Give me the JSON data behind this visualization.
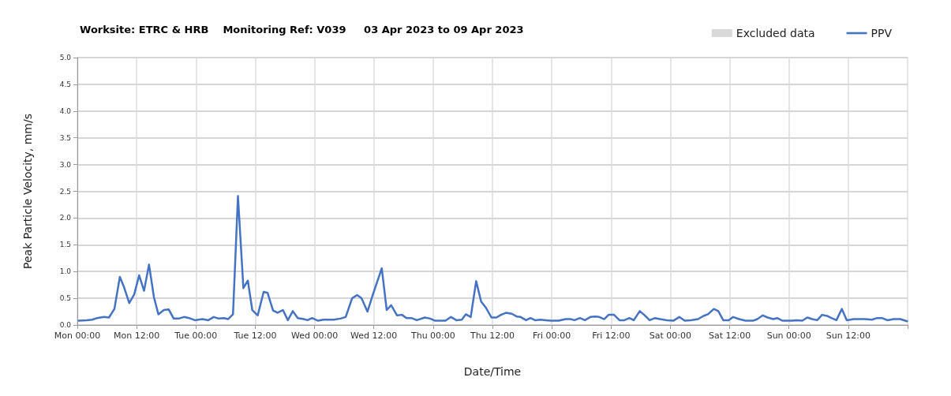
{
  "chart_data": {
    "type": "line",
    "title": "Worksite: ETRC & HRB    Monitoring Ref: V039     03 Apr 2023 to 09 Apr 2023",
    "xlabel": "Date/Time",
    "ylabel": "Peak Particle Velocity, mm/s",
    "xlim": [
      "2023-04-03T00:00",
      "2023-04-10T00:00"
    ],
    "xticks": [
      {
        "value": "2023-04-03T00:00",
        "label": "Mon 00:00"
      },
      {
        "value": "2023-04-03T12:00",
        "label": "Mon 12:00"
      },
      {
        "value": "2023-04-04T00:00",
        "label": "Tue 00:00"
      },
      {
        "value": "2023-04-04T12:00",
        "label": "Tue 12:00"
      },
      {
        "value": "2023-04-05T00:00",
        "label": "Wed 00:00"
      },
      {
        "value": "2023-04-05T12:00",
        "label": "Wed 12:00"
      },
      {
        "value": "2023-04-06T00:00",
        "label": "Thu 00:00"
      },
      {
        "value": "2023-04-06T12:00",
        "label": "Thu 12:00"
      },
      {
        "value": "2023-04-07T00:00",
        "label": "Fri 00:00"
      },
      {
        "value": "2023-04-07T12:00",
        "label": "Fri 12:00"
      },
      {
        "value": "2023-04-08T00:00",
        "label": "Sat 00:00"
      },
      {
        "value": "2023-04-08T12:00",
        "label": "Sat 12:00"
      },
      {
        "value": "2023-04-09T00:00",
        "label": "Sun 00:00"
      },
      {
        "value": "2023-04-09T12:00",
        "label": "Sun 12:00"
      },
      {
        "value": "2023-04-10T00:00",
        "label": null
      }
    ],
    "ylim": [
      0,
      5
    ],
    "yticks": [
      {
        "value": 0,
        "label": "0.0"
      },
      {
        "value": 0.5,
        "label": "0.5"
      },
      {
        "value": 1,
        "label": "1.0"
      },
      {
        "value": 1.5,
        "label": "1.5"
      },
      {
        "value": 2,
        "label": "2.0"
      },
      {
        "value": 2.5,
        "label": "2.5"
      },
      {
        "value": 3,
        "label": "3.0"
      },
      {
        "value": 3.5,
        "label": "3.5"
      },
      {
        "value": 4,
        "label": "4.0"
      },
      {
        "value": 4.5,
        "label": "4.5"
      },
      {
        "value": 5,
        "label": "5.0"
      }
    ],
    "grid": true,
    "legend": "top right",
    "marker": "none",
    "line_style": "solid",
    "series": [
      {
        "name": "Excluded data",
        "type": "bar",
        "color": "#d9d9d9"
      },
      {
        "name": "PPV",
        "color": "#4472c4",
        "x": [
          "2023-04-03T00:18",
          "2023-04-03T01:54",
          "2023-04-03T03:00",
          "2023-04-03T04:00",
          "2023-04-03T05:24",
          "2023-04-03T06:24",
          "2023-04-03T07:30",
          "2023-04-03T08:36",
          "2023-04-03T09:24",
          "2023-04-03T10:30",
          "2023-04-03T11:30",
          "2023-04-03T12:30",
          "2023-04-03T13:30",
          "2023-04-03T14:30",
          "2023-04-03T15:30",
          "2023-04-03T16:24",
          "2023-04-03T17:30",
          "2023-04-03T18:30",
          "2023-04-03T19:30",
          "2023-04-03T20:30",
          "2023-04-03T21:36",
          "2023-04-03T22:36",
          "2023-04-03T23:48",
          "2023-04-04T01:18",
          "2023-04-04T02:30",
          "2023-04-04T03:36",
          "2023-04-04T04:36",
          "2023-04-04T05:42",
          "2023-04-04T06:30",
          "2023-04-04T07:30",
          "2023-04-04T08:30",
          "2023-04-04T09:36",
          "2023-04-04T10:30",
          "2023-04-04T11:24",
          "2023-04-04T12:30",
          "2023-04-04T13:42",
          "2023-04-04T14:30",
          "2023-04-04T15:36",
          "2023-04-04T16:30",
          "2023-04-04T17:36",
          "2023-04-04T18:36",
          "2023-04-04T19:36",
          "2023-04-04T20:36",
          "2023-04-04T21:48",
          "2023-04-04T22:36",
          "2023-04-04T23:30",
          "2023-04-05T00:42",
          "2023-04-05T01:48",
          "2023-04-05T03:54",
          "2023-04-05T05:12",
          "2023-04-05T06:18",
          "2023-04-05T07:36",
          "2023-04-05T08:36",
          "2023-04-05T09:30",
          "2023-04-05T10:42",
          "2023-04-05T11:48",
          "2023-04-05T13:36",
          "2023-04-05T14:36",
          "2023-04-05T15:30",
          "2023-04-05T16:42",
          "2023-04-05T17:42",
          "2023-04-05T18:36",
          "2023-04-05T19:36",
          "2023-04-05T20:42",
          "2023-04-05T22:18",
          "2023-04-05T23:24",
          "2023-04-06T00:24",
          "2023-04-06T02:30",
          "2023-04-06T03:36",
          "2023-04-06T04:42",
          "2023-04-06T05:48",
          "2023-04-06T06:36",
          "2023-04-06T07:36",
          "2023-04-06T08:42",
          "2023-04-06T09:42",
          "2023-04-06T10:42",
          "2023-04-06T11:48",
          "2023-04-06T12:48",
          "2023-04-06T13:42",
          "2023-04-06T14:48",
          "2023-04-06T15:54",
          "2023-04-06T16:54",
          "2023-04-06T17:42",
          "2023-04-06T18:48",
          "2023-04-06T19:42",
          "2023-04-06T20:36",
          "2023-04-06T21:42",
          "2023-04-06T22:48",
          "2023-04-06T23:48",
          "2023-04-07T01:24",
          "2023-04-07T02:48",
          "2023-04-07T03:48",
          "2023-04-07T04:36",
          "2023-04-07T05:42",
          "2023-04-07T06:42",
          "2023-04-07T07:48",
          "2023-04-07T08:48",
          "2023-04-07T09:36",
          "2023-04-07T10:36",
          "2023-04-07T11:30",
          "2023-04-07T12:36",
          "2023-04-07T13:42",
          "2023-04-07T14:42",
          "2023-04-07T15:42",
          "2023-04-07T16:36",
          "2023-04-07T17:48",
          "2023-04-07T18:42",
          "2023-04-07T19:48",
          "2023-04-07T20:54",
          "2023-04-07T21:54",
          "2023-04-07T23:18",
          "2023-04-08T00:36",
          "2023-04-08T01:48",
          "2023-04-08T02:54",
          "2023-04-08T04:06",
          "2023-04-08T05:36",
          "2023-04-08T06:42",
          "2023-04-08T07:36",
          "2023-04-08T08:48",
          "2023-04-08T09:42",
          "2023-04-08T10:42",
          "2023-04-08T11:48",
          "2023-04-08T12:42",
          "2023-04-08T13:54",
          "2023-04-08T15:12",
          "2023-04-08T16:42",
          "2023-04-08T17:36",
          "2023-04-08T18:42",
          "2023-04-08T19:42",
          "2023-04-08T20:48",
          "2023-04-08T21:36",
          "2023-04-08T22:42",
          "2023-04-09T00:36",
          "2023-04-09T01:36",
          "2023-04-09T02:42",
          "2023-04-09T03:42",
          "2023-04-09T04:42",
          "2023-04-09T05:42",
          "2023-04-09T06:42",
          "2023-04-09T07:42",
          "2023-04-09T08:36",
          "2023-04-09T09:36",
          "2023-04-09T10:42",
          "2023-04-09T11:42",
          "2023-04-09T13:06",
          "2023-04-09T14:06",
          "2023-04-09T15:24",
          "2023-04-09T16:48",
          "2023-04-09T17:48",
          "2023-04-09T18:48",
          "2023-04-09T19:54",
          "2023-04-09T21:12",
          "2023-04-09T22:30",
          "2023-04-09T23:54"
        ],
        "values": [
          0.08,
          0.09,
          0.1,
          0.13,
          0.15,
          0.14,
          0.3,
          0.9,
          0.72,
          0.41,
          0.57,
          0.93,
          0.64,
          1.13,
          0.52,
          0.2,
          0.28,
          0.29,
          0.12,
          0.12,
          0.15,
          0.13,
          0.09,
          0.11,
          0.09,
          0.15,
          0.12,
          0.13,
          0.11,
          0.2,
          2.41,
          0.69,
          0.83,
          0.28,
          0.18,
          0.62,
          0.6,
          0.27,
          0.23,
          0.28,
          0.09,
          0.26,
          0.13,
          0.11,
          0.09,
          0.13,
          0.08,
          0.1,
          0.1,
          0.12,
          0.15,
          0.5,
          0.56,
          0.5,
          0.25,
          0.57,
          1.06,
          0.28,
          0.37,
          0.18,
          0.19,
          0.13,
          0.13,
          0.09,
          0.14,
          0.12,
          0.08,
          0.08,
          0.15,
          0.09,
          0.1,
          0.2,
          0.15,
          0.82,
          0.44,
          0.32,
          0.14,
          0.14,
          0.19,
          0.23,
          0.21,
          0.16,
          0.15,
          0.09,
          0.13,
          0.09,
          0.1,
          0.09,
          0.08,
          0.08,
          0.11,
          0.11,
          0.09,
          0.13,
          0.09,
          0.15,
          0.16,
          0.15,
          0.11,
          0.19,
          0.19,
          0.09,
          0.09,
          0.13,
          0.09,
          0.26,
          0.19,
          0.09,
          0.13,
          0.11,
          0.09,
          0.08,
          0.15,
          0.08,
          0.09,
          0.11,
          0.17,
          0.2,
          0.3,
          0.26,
          0.09,
          0.09,
          0.15,
          0.11,
          0.08,
          0.08,
          0.11,
          0.18,
          0.14,
          0.11,
          0.13,
          0.08,
          0.08,
          0.09,
          0.08,
          0.14,
          0.11,
          0.09,
          0.19,
          0.17,
          0.13,
          0.09,
          0.3,
          0.09,
          0.11,
          0.11,
          0.11,
          0.1,
          0.13,
          0.13,
          0.09,
          0.11,
          0.11,
          0.07
        ]
      }
    ]
  }
}
